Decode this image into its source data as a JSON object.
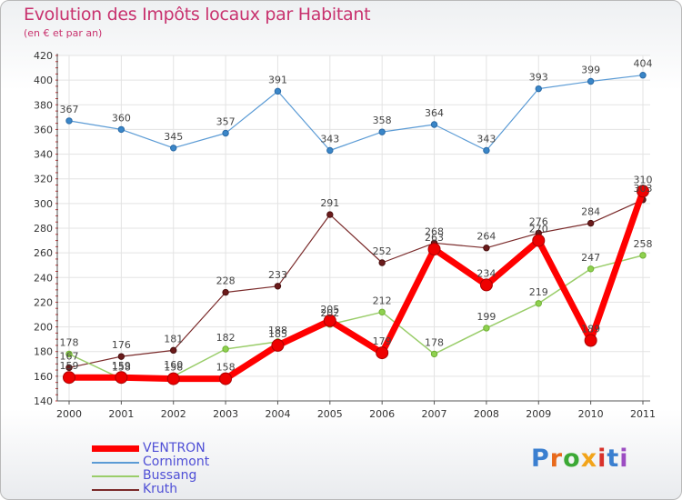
{
  "header": {
    "title": "Evolution des Impôts locaux par Habitant",
    "subtitle": "(en € et par an)"
  },
  "logo": {
    "text": "Proxiti"
  },
  "chart_data": {
    "type": "line",
    "title": "Evolution des Impôts locaux par Habitant",
    "subtitle": "(en € et par an)",
    "xlabel": "",
    "ylabel": "",
    "categories": [
      "2000",
      "2001",
      "2002",
      "2003",
      "2004",
      "2005",
      "2006",
      "2007",
      "2008",
      "2009",
      "2010",
      "2011"
    ],
    "ylim": [
      140,
      420
    ],
    "yticks": [
      140,
      160,
      180,
      200,
      220,
      240,
      260,
      280,
      300,
      320,
      340,
      360,
      380,
      400,
      420
    ],
    "grid": true,
    "legend_position": "bottom-left",
    "series": [
      {
        "name": "Cornimont",
        "color": "#5b9bd5",
        "values": [
          367,
          360,
          345,
          357,
          391,
          343,
          358,
          364,
          343,
          393,
          399,
          404
        ]
      },
      {
        "name": "Kruth",
        "color": "#7a2a2a",
        "values": [
          167,
          176,
          181,
          228,
          233,
          291,
          252,
          268,
          264,
          276,
          284,
          303
        ]
      },
      {
        "name": "Bussang",
        "color": "#9acd6a",
        "values": [
          178,
          158,
          160,
          182,
          188,
          202,
          212,
          178,
          199,
          219,
          247,
          258
        ]
      },
      {
        "name": "VENTRON",
        "color": "#ff0000",
        "values": [
          159,
          159,
          158,
          158,
          185,
          205,
          179,
          263,
          234,
          270,
          189,
          310
        ]
      }
    ],
    "legend_order": [
      "VENTRON",
      "Cornimont",
      "Bussang",
      "Kruth"
    ]
  }
}
